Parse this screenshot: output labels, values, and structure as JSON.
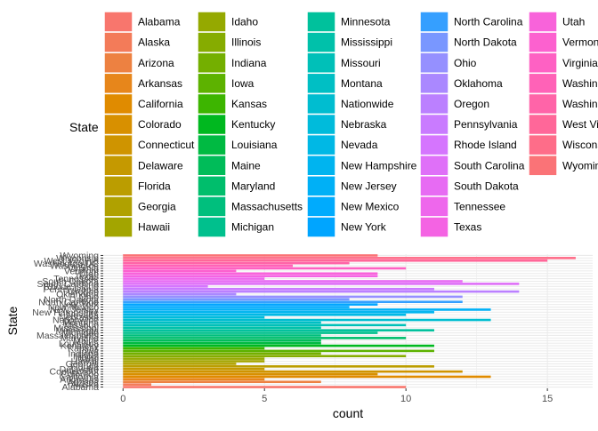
{
  "chart_data": {
    "type": "bar",
    "orientation": "horizontal",
    "xlabel": "count",
    "ylabel": "State",
    "legend_title": "State",
    "legend_position": "top",
    "xlim": [
      -0.7,
      16.6
    ],
    "x_ticks": [
      0,
      5,
      10,
      15
    ],
    "grid": true,
    "categories": [
      "Alabama",
      "Alaska",
      "Arizona",
      "Arkansas",
      "California",
      "Colorado",
      "Connecticut",
      "Delaware",
      "Florida",
      "Georgia",
      "Hawaii",
      "Idaho",
      "Illinois",
      "Indiana",
      "Iowa",
      "Kansas",
      "Kentucky",
      "Louisiana",
      "Maine",
      "Maryland",
      "Massachusetts",
      "Michigan",
      "Minnesota",
      "Mississippi",
      "Missouri",
      "Montana",
      "Nationwide",
      "Nebraska",
      "Nevada",
      "New Hampshire",
      "New Jersey",
      "New Mexico",
      "New York",
      "North Carolina",
      "North Dakota",
      "Ohio",
      "Oklahoma",
      "Oregon",
      "Pennsylvania",
      "Rhode Island",
      "South Carolina",
      "South Dakota",
      "Tennessee",
      "Texas",
      "Utah",
      "Vermont",
      "Virginia",
      "Washington",
      "Washington DC",
      "West Virginia",
      "Wisconsin",
      "Wyoming"
    ],
    "legend_labels": [
      "Alabama",
      "Alaska",
      "Arizona",
      "Arkansas",
      "California",
      "Colorado",
      "Connecticut",
      "Delaware",
      "Florida",
      "Georgia",
      "Hawaii",
      "Idaho",
      "Illinois",
      "Indiana",
      "Iowa",
      "Kansas",
      "Kentucky",
      "Louisiana",
      "Maine",
      "Maryland",
      "Massachusetts",
      "Michigan",
      "Minnesota",
      "Mississippi",
      "Missouri",
      "Montana",
      "Nationwide",
      "Nebraska",
      "Nevada",
      "New Hampshire",
      "New Jersey",
      "New Mexico",
      "New York",
      "North Carolina",
      "North Dakota",
      "Ohio",
      "Oklahoma",
      "Oregon",
      "Pennsylvania",
      "Rhode Island",
      "South Carolina",
      "South Dakota",
      "Tennessee",
      "Texas",
      "Utah",
      "Vermont",
      "Virginia",
      "Washingt",
      "Washingt",
      "West Virg",
      "Wisconsi",
      "Wyoming"
    ],
    "values": [
      10,
      1,
      7,
      5,
      13,
      9,
      12,
      5,
      11,
      4,
      5,
      5,
      10,
      7,
      11,
      5,
      11,
      7,
      7,
      10,
      7,
      9,
      11,
      7,
      10,
      7,
      13,
      5,
      10,
      11,
      13,
      8,
      9,
      12,
      8,
      12,
      4,
      14,
      11,
      3,
      14,
      12,
      5,
      9,
      9,
      4,
      10,
      6,
      8,
      15,
      16,
      9
    ],
    "colors": [
      "#F8766D",
      "#F37B59",
      "#ED8141",
      "#E7861B",
      "#E08B00",
      "#D89000",
      "#CF9400",
      "#C59900",
      "#BB9D00",
      "#B0A100",
      "#A3A500",
      "#95A900",
      "#86AC00",
      "#74AF00",
      "#5DB200",
      "#3DB500",
      "#00B81F",
      "#00BA42",
      "#00BC59",
      "#00BE6C",
      "#00BF7D",
      "#00C08D",
      "#00C19C",
      "#00C1AA",
      "#00C0B8",
      "#00BFC4",
      "#00BDD0",
      "#00BBDB",
      "#00B8E5",
      "#00B4EF",
      "#00B0F6",
      "#00ABFD",
      "#00A5FF",
      "#359FFF",
      "#7997FF",
      "#9590FF",
      "#AA88FF",
      "#BB80FF",
      "#C97BFF",
      "#D575FE",
      "#DF70F8",
      "#E76BF3",
      "#EE67EC",
      "#F463E3",
      "#F863DA",
      "#FC61CF",
      "#FE61C3",
      "#FF62B7",
      "#FF64A8",
      "#FF6799",
      "#FE6D89",
      "#FA7377"
    ]
  }
}
